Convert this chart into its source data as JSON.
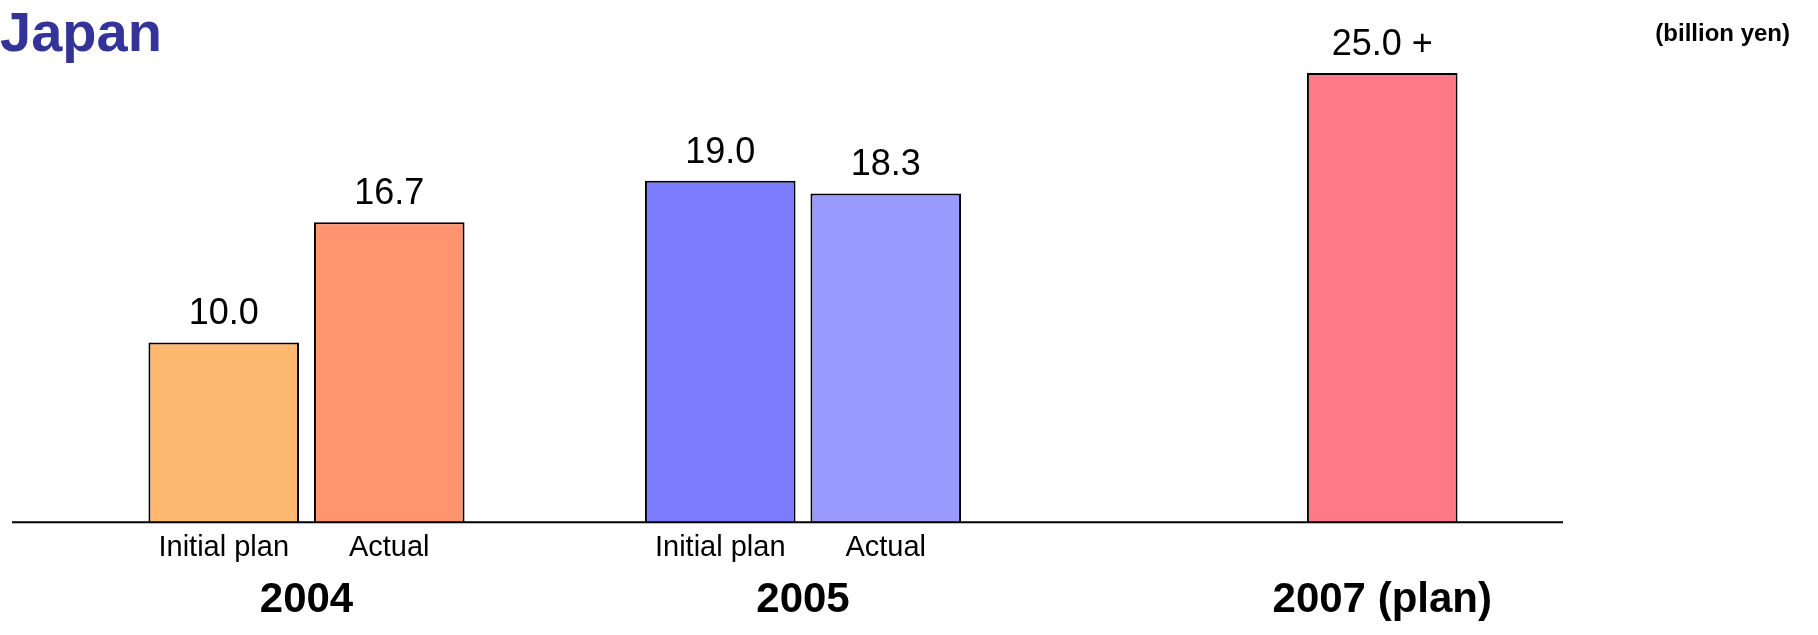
{
  "chart_data": {
    "type": "bar",
    "title": "Japan",
    "ylabel": "(billion yen)",
    "categories": [
      "Initial plan",
      "Actual",
      null,
      "Initial plan",
      "Actual",
      null,
      null,
      null
    ],
    "values": [
      10.0,
      16.7,
      null,
      19.0,
      18.3,
      null,
      null,
      25.0
    ],
    "colors": [
      "#ffb870",
      "#ff9470",
      "#ffffff",
      "#7c7cff",
      "#9a9aff",
      "#ffffff",
      "#ffffff",
      "#ff7a86"
    ],
    "value_labels": [
      "10.0",
      "16.7",
      null,
      "19.0",
      "18.3",
      null,
      null,
      "25.0 +"
    ],
    "annotations": [
      "2004",
      "2005",
      "2007 (plan)"
    ],
    "grid": false,
    "legend": false
  }
}
